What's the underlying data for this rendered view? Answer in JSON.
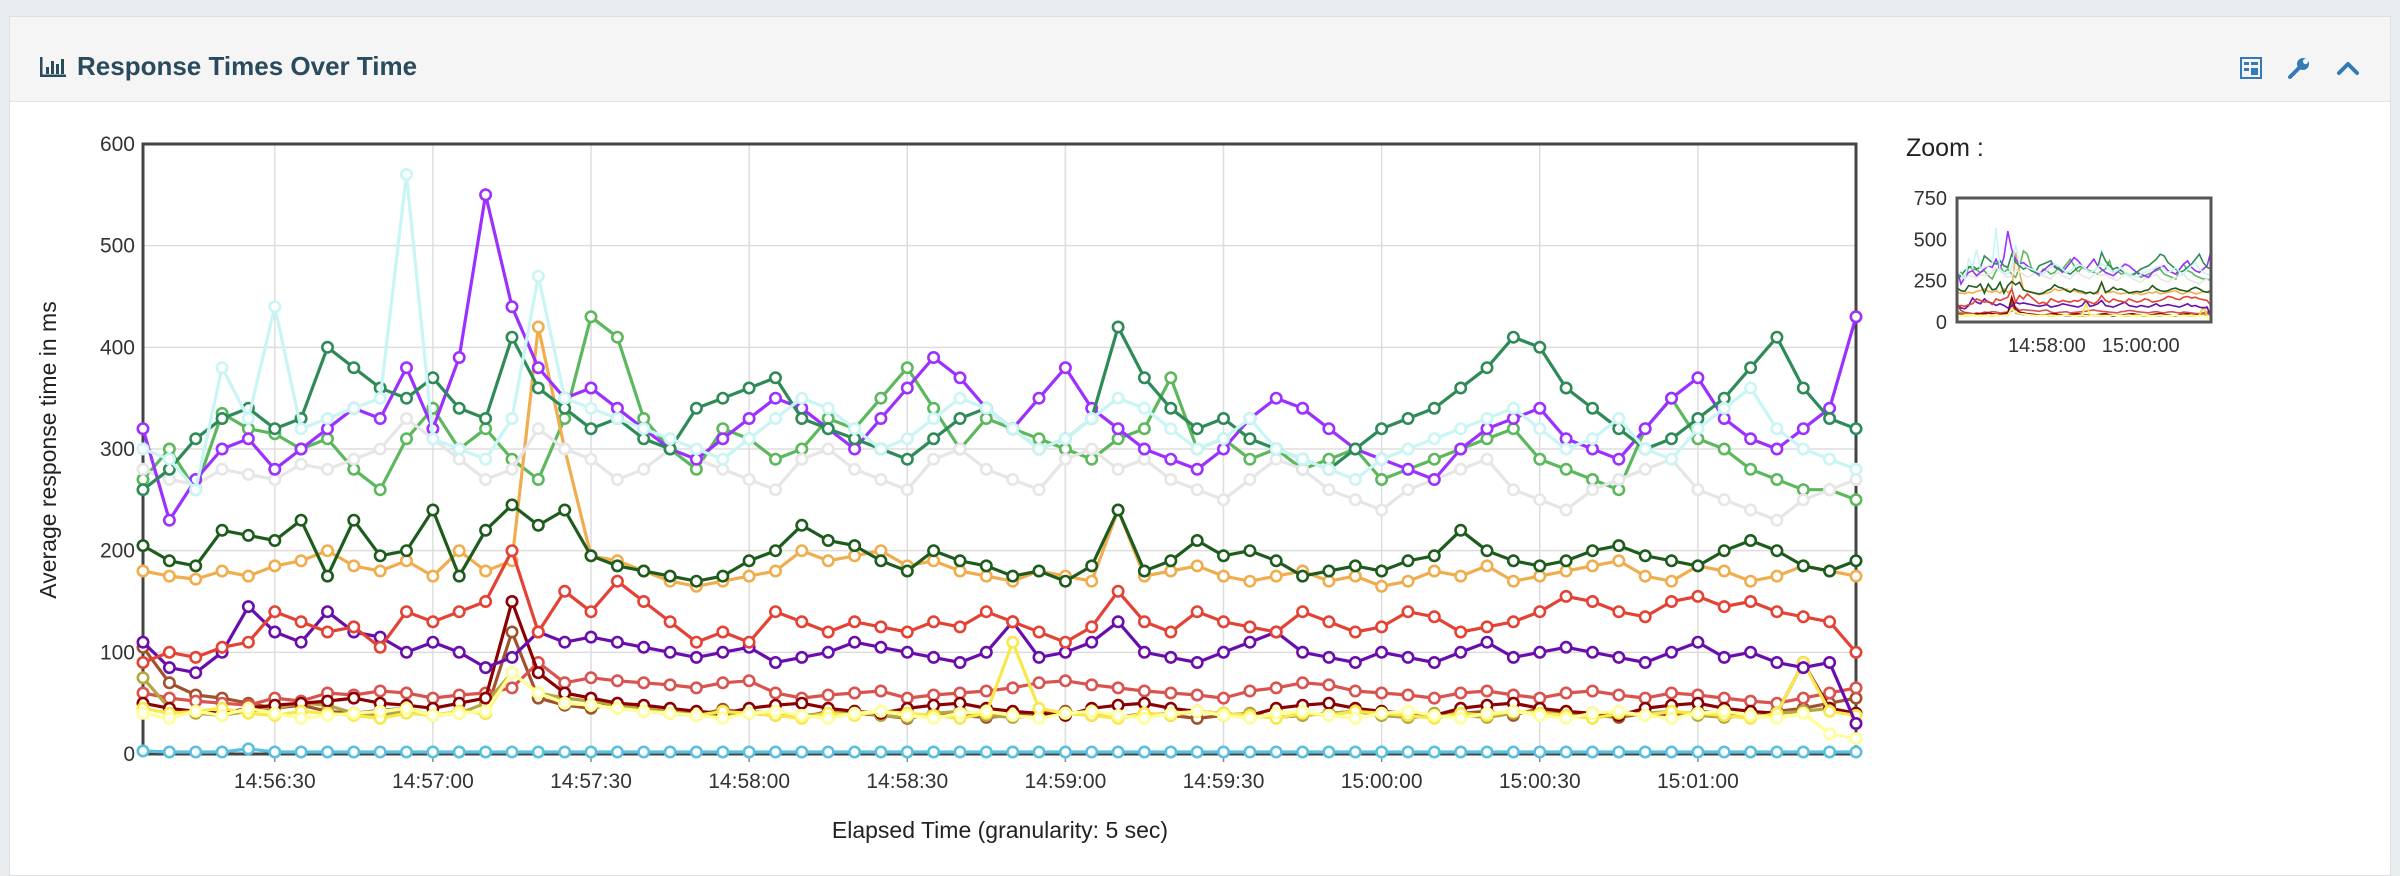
{
  "panel": {
    "title": "Response Times Over Time",
    "icons": [
      "bar-chart-icon",
      "export-icon",
      "wrench-icon",
      "chevron-up-icon"
    ]
  },
  "zoom": {
    "label": "Zoom :"
  },
  "chart_data": {
    "type": "line",
    "title": "",
    "xlabel": "Elapsed Time (granularity: 5 sec)",
    "ylabel": "Average response time in ms",
    "xlim": [
      "14:56:05",
      "15:01:30"
    ],
    "ylim": [
      0,
      600
    ],
    "y_ticks": [
      0,
      100,
      200,
      300,
      400,
      500,
      600
    ],
    "x_ticks": [
      "14:56:30",
      "14:57:00",
      "14:57:30",
      "14:58:00",
      "14:58:30",
      "14:59:00",
      "14:59:30",
      "15:00:00",
      "15:00:30",
      "15:01:00"
    ],
    "x_times": [
      "14:56:05",
      "14:56:10",
      "14:56:15",
      "14:56:20",
      "14:56:25",
      "14:56:30",
      "14:56:35",
      "14:56:40",
      "14:56:45",
      "14:56:50",
      "14:56:55",
      "14:57:00",
      "14:57:05",
      "14:57:10",
      "14:57:15",
      "14:57:20",
      "14:57:25",
      "14:57:30",
      "14:57:35",
      "14:57:40",
      "14:57:45",
      "14:57:50",
      "14:57:55",
      "14:58:00",
      "14:58:05",
      "14:58:10",
      "14:58:15",
      "14:58:20",
      "14:58:25",
      "14:58:30",
      "14:58:35",
      "14:58:40",
      "14:58:45",
      "14:58:50",
      "14:58:55",
      "14:59:00",
      "14:59:05",
      "14:59:10",
      "14:59:15",
      "14:59:20",
      "14:59:25",
      "14:59:30",
      "14:59:35",
      "14:59:40",
      "14:59:45",
      "14:59:50",
      "14:59:55",
      "15:00:00",
      "15:00:05",
      "15:00:10",
      "15:00:15",
      "15:00:20",
      "15:00:25",
      "15:00:30",
      "15:00:35",
      "15:00:40",
      "15:00:45",
      "15:00:50",
      "15:00:55",
      "15:01:00",
      "15:01:05",
      "15:01:10",
      "15:01:15",
      "15:01:20",
      "15:01:25",
      "15:01:30"
    ],
    "grid": true,
    "legend": "none",
    "series": [
      {
        "color": "#a0522d",
        "values": [
          105,
          70,
          58,
          55,
          50,
          45,
          48,
          42,
          40,
          43,
          45,
          38,
          42,
          40,
          120,
          55,
          48,
          45,
          50,
          42,
          40,
          38,
          44,
          40,
          38,
          36,
          42,
          40,
          38,
          35,
          40,
          38,
          36,
          38,
          40,
          42,
          38,
          36,
          40,
          38,
          35,
          38,
          40,
          36,
          38,
          40,
          42,
          38,
          36,
          38,
          40,
          42,
          38,
          45,
          40,
          38,
          36,
          40,
          38,
          42,
          40,
          38,
          42,
          45,
          50,
          55
        ]
      },
      {
        "color": "#5cb85c",
        "values": [
          270,
          300,
          260,
          335,
          320,
          315,
          300,
          310,
          280,
          260,
          310,
          340,
          300,
          320,
          290,
          270,
          330,
          430,
          410,
          330,
          300,
          280,
          320,
          310,
          290,
          300,
          330,
          320,
          350,
          380,
          340,
          300,
          330,
          320,
          310,
          300,
          290,
          310,
          320,
          370,
          300,
          310,
          290,
          300,
          280,
          290,
          300,
          270,
          280,
          290,
          300,
          310,
          320,
          290,
          280,
          270,
          260,
          320,
          350,
          310,
          300,
          280,
          270,
          260,
          260,
          250
        ]
      },
      {
        "color": "#f0ad4e",
        "values": [
          180,
          175,
          172,
          180,
          175,
          185,
          190,
          200,
          185,
          180,
          190,
          175,
          200,
          180,
          190,
          420,
          300,
          195,
          190,
          180,
          170,
          165,
          170,
          175,
          180,
          200,
          190,
          195,
          200,
          185,
          190,
          180,
          175,
          170,
          180,
          175,
          170,
          240,
          175,
          180,
          185,
          175,
          170,
          175,
          180,
          170,
          175,
          165,
          170,
          180,
          175,
          185,
          170,
          175,
          180,
          185,
          190,
          175,
          170,
          185,
          180,
          170,
          175,
          185,
          180,
          175
        ]
      },
      {
        "color": "#d9534f",
        "values": [
          60,
          55,
          52,
          50,
          48,
          55,
          52,
          60,
          58,
          62,
          60,
          55,
          58,
          60,
          65,
          90,
          70,
          75,
          72,
          70,
          68,
          65,
          70,
          72,
          60,
          55,
          58,
          60,
          62,
          55,
          58,
          60,
          62,
          65,
          70,
          72,
          68,
          65,
          62,
          60,
          58,
          55,
          62,
          65,
          70,
          68,
          62,
          60,
          58,
          55,
          60,
          62,
          58,
          55,
          60,
          62,
          58,
          55,
          60,
          58,
          55,
          52,
          50,
          55,
          60,
          65
        ]
      },
      {
        "color": "#b5a642",
        "values": [
          75,
          45,
          40,
          38,
          42,
          45,
          50,
          48,
          40,
          38,
          42,
          38,
          40,
          50,
          80,
          60,
          55,
          52,
          48,
          45,
          42,
          40,
          38,
          42,
          40,
          38,
          40,
          42,
          38,
          36,
          40,
          42,
          38,
          36,
          38,
          40,
          38,
          36,
          38,
          40,
          42,
          38,
          40,
          36,
          38,
          40,
          42,
          38,
          36,
          40,
          38,
          36,
          40,
          42,
          38,
          36,
          38,
          40,
          42,
          38,
          36,
          38,
          40,
          42,
          45,
          40
        ]
      },
      {
        "color": "#5bc0de",
        "values": [
          3,
          2,
          2,
          2,
          5,
          2,
          2,
          2,
          2,
          2,
          2,
          2,
          2,
          2,
          2,
          2,
          2,
          2,
          2,
          2,
          2,
          2,
          2,
          2,
          2,
          2,
          2,
          2,
          2,
          2,
          2,
          2,
          2,
          2,
          2,
          2,
          2,
          2,
          2,
          2,
          2,
          2,
          2,
          2,
          2,
          2,
          2,
          2,
          2,
          2,
          2,
          2,
          2,
          2,
          2,
          2,
          2,
          2,
          2,
          2,
          2,
          2,
          2,
          2,
          2,
          2
        ]
      },
      {
        "color": "#e6e6e6",
        "values": [
          280,
          270,
          265,
          280,
          275,
          270,
          285,
          280,
          290,
          300,
          330,
          310,
          290,
          270,
          280,
          320,
          300,
          290,
          270,
          280,
          300,
          290,
          280,
          270,
          260,
          290,
          300,
          280,
          270,
          260,
          290,
          300,
          280,
          270,
          260,
          290,
          300,
          280,
          290,
          270,
          260,
          250,
          270,
          290,
          280,
          260,
          250,
          240,
          260,
          270,
          280,
          290,
          260,
          250,
          240,
          260,
          270,
          280,
          290,
          260,
          250,
          240,
          230,
          250,
          260,
          270
        ]
      },
      {
        "color": "#8b0000",
        "values": [
          50,
          45,
          42,
          40,
          45,
          48,
          50,
          52,
          55,
          50,
          48,
          45,
          50,
          55,
          150,
          80,
          60,
          55,
          50,
          48,
          45,
          42,
          40,
          45,
          48,
          50,
          45,
          42,
          40,
          45,
          48,
          50,
          45,
          42,
          40,
          38,
          45,
          48,
          50,
          45,
          42,
          40,
          38,
          45,
          48,
          50,
          45,
          42,
          40,
          38,
          45,
          48,
          50,
          45,
          42,
          40,
          38,
          45,
          48,
          50,
          45,
          42,
          40,
          90,
          45,
          40
        ]
      },
      {
        "color": "#9b30ff",
        "values": [
          320,
          230,
          270,
          300,
          310,
          280,
          300,
          320,
          340,
          330,
          380,
          320,
          390,
          550,
          440,
          380,
          350,
          360,
          340,
          320,
          300,
          290,
          310,
          330,
          350,
          340,
          320,
          300,
          330,
          360,
          390,
          370,
          340,
          320,
          350,
          380,
          340,
          320,
          300,
          290,
          280,
          300,
          330,
          350,
          340,
          320,
          300,
          290,
          280,
          270,
          300,
          320,
          330,
          340,
          310,
          300,
          290,
          320,
          350,
          370,
          330,
          310,
          300,
          320,
          340,
          430
        ]
      },
      {
        "color": "#2e8b57",
        "values": [
          260,
          280,
          310,
          330,
          340,
          320,
          330,
          400,
          380,
          360,
          350,
          370,
          340,
          330,
          410,
          360,
          340,
          320,
          330,
          310,
          300,
          340,
          350,
          360,
          370,
          330,
          320,
          310,
          300,
          290,
          310,
          330,
          340,
          320,
          300,
          310,
          330,
          420,
          370,
          340,
          320,
          330,
          310,
          300,
          290,
          280,
          300,
          320,
          330,
          340,
          360,
          380,
          410,
          400,
          360,
          340,
          320,
          300,
          310,
          330,
          350,
          380,
          410,
          360,
          330,
          320
        ]
      },
      {
        "color": "#1e5c1e",
        "values": [
          205,
          190,
          185,
          220,
          215,
          210,
          230,
          175,
          230,
          195,
          200,
          240,
          175,
          220,
          245,
          225,
          240,
          195,
          185,
          180,
          175,
          170,
          175,
          190,
          200,
          225,
          210,
          205,
          190,
          180,
          200,
          190,
          185,
          175,
          180,
          170,
          185,
          240,
          180,
          190,
          210,
          195,
          200,
          190,
          175,
          180,
          185,
          180,
          190,
          195,
          220,
          200,
          190,
          185,
          190,
          200,
          205,
          195,
          190,
          185,
          200,
          210,
          200,
          185,
          180,
          190
        ]
      },
      {
        "color": "#f7e94a",
        "values": [
          45,
          40,
          42,
          45,
          40,
          38,
          42,
          40,
          38,
          35,
          40,
          38,
          42,
          40,
          80,
          60,
          50,
          48,
          45,
          42,
          40,
          38,
          42,
          40,
          38,
          35,
          40,
          38,
          42,
          40,
          38,
          35,
          40,
          110,
          45,
          40,
          38,
          35,
          40,
          38,
          42,
          40,
          38,
          35,
          40,
          38,
          42,
          40,
          38,
          35,
          40,
          38,
          42,
          40,
          38,
          35,
          40,
          38,
          42,
          40,
          38,
          35,
          40,
          90,
          42,
          38
        ]
      },
      {
        "color": "#6a0dad",
        "values": [
          110,
          85,
          80,
          100,
          145,
          120,
          110,
          140,
          120,
          115,
          100,
          110,
          100,
          85,
          95,
          120,
          110,
          115,
          110,
          105,
          100,
          95,
          100,
          105,
          90,
          95,
          100,
          110,
          105,
          100,
          95,
          90,
          100,
          130,
          95,
          100,
          110,
          130,
          100,
          95,
          90,
          100,
          110,
          120,
          100,
          95,
          90,
          100,
          95,
          90,
          100,
          110,
          95,
          100,
          105,
          100,
          95,
          90,
          100,
          110,
          95,
          100,
          90,
          85,
          90,
          30
        ]
      },
      {
        "color": "#c9f5f5",
        "values": [
          300,
          290,
          260,
          380,
          330,
          440,
          320,
          330,
          340,
          350,
          570,
          310,
          300,
          290,
          330,
          470,
          350,
          340,
          330,
          320,
          310,
          300,
          290,
          310,
          330,
          350,
          340,
          320,
          300,
          310,
          330,
          350,
          340,
          320,
          300,
          310,
          330,
          350,
          340,
          320,
          300,
          310,
          330,
          300,
          290,
          280,
          270,
          290,
          300,
          310,
          320,
          330,
          340,
          320,
          300,
          310,
          330,
          300,
          290,
          320,
          340,
          360,
          320,
          300,
          290,
          280
        ]
      },
      {
        "color": "#e34234",
        "values": [
          90,
          100,
          95,
          105,
          110,
          140,
          130,
          120,
          125,
          105,
          140,
          130,
          140,
          150,
          200,
          120,
          160,
          140,
          170,
          150,
          130,
          110,
          120,
          110,
          140,
          130,
          120,
          130,
          125,
          120,
          130,
          125,
          140,
          130,
          120,
          110,
          125,
          160,
          130,
          120,
          140,
          130,
          125,
          120,
          140,
          130,
          120,
          125,
          140,
          135,
          120,
          125,
          130,
          140,
          155,
          150,
          140,
          135,
          150,
          155,
          145,
          150,
          140,
          135,
          130,
          100
        ]
      },
      {
        "color": "#ffff99",
        "values": [
          40,
          35,
          42,
          38,
          45,
          40,
          35,
          38,
          40,
          42,
          45,
          38,
          40,
          42,
          80,
          60,
          50,
          48,
          45,
          42,
          40,
          38,
          35,
          40,
          42,
          38,
          35,
          40,
          42,
          38,
          35,
          40,
          42,
          38,
          35,
          40,
          42,
          38,
          35,
          40,
          42,
          38,
          35,
          40,
          42,
          38,
          35,
          40,
          42,
          38,
          35,
          40,
          42,
          38,
          35,
          40,
          42,
          38,
          35,
          40,
          42,
          38,
          35,
          40,
          20,
          15
        ]
      }
    ]
  }
}
